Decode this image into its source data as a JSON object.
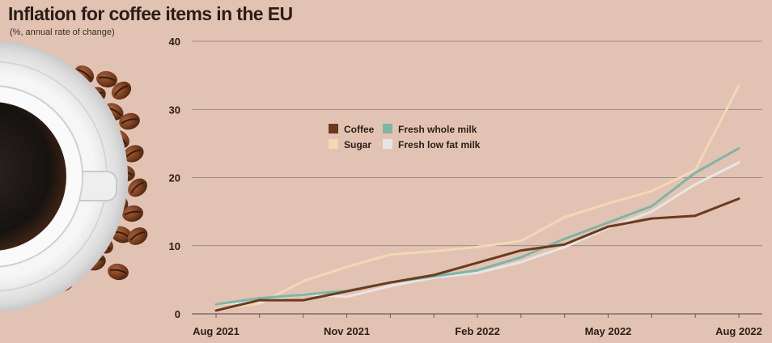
{
  "chart_data": {
    "type": "line",
    "title": "Inflation for coffee items in the EU",
    "subtitle": "(%, annual rate of change)",
    "xlabel": "",
    "ylabel": "",
    "ylim": [
      0,
      40
    ],
    "y_ticks": [
      0,
      10,
      20,
      30,
      40
    ],
    "x": [
      "Aug 2021",
      "Sep 2021",
      "Oct 2021",
      "Nov 2021",
      "Dec 2021",
      "Jan 2022",
      "Feb 2022",
      "Mar 2022",
      "Apr 2022",
      "May 2022",
      "Jun 2022",
      "Jul 2022",
      "Aug 2022"
    ],
    "x_tick_labels": [
      "Aug 2021",
      "Nov 2021",
      "Feb 2022",
      "May 2022",
      "Aug 2022"
    ],
    "x_tick_indices": [
      0,
      3,
      6,
      9,
      12
    ],
    "grid": "horizontal",
    "legend": "center",
    "series": [
      {
        "name": "Coffee",
        "color": "#6b3a1e",
        "values": [
          0.5,
          2.0,
          2.0,
          3.3,
          4.6,
          5.7,
          7.5,
          9.3,
          10.2,
          12.8,
          14.0,
          14.4,
          16.9
        ]
      },
      {
        "name": "Sugar",
        "color": "#f2d8b4",
        "values": [
          0.7,
          1.5,
          4.8,
          6.9,
          8.7,
          9.2,
          9.8,
          10.7,
          14.2,
          16.2,
          18.0,
          21.1,
          33.5
        ]
      },
      {
        "name": "Fresh whole milk",
        "color": "#7fb5a6",
        "values": [
          1.4,
          2.3,
          2.8,
          3.4,
          4.6,
          5.5,
          6.4,
          8.3,
          11.0,
          13.4,
          15.8,
          20.7,
          24.3
        ]
      },
      {
        "name": "Fresh low fat milk",
        "color": "#e6e6e6",
        "values": [
          1.4,
          1.8,
          2.9,
          2.5,
          4.1,
          5.3,
          6.0,
          7.6,
          9.8,
          12.6,
          15.0,
          19.0,
          22.2
        ]
      }
    ]
  }
}
